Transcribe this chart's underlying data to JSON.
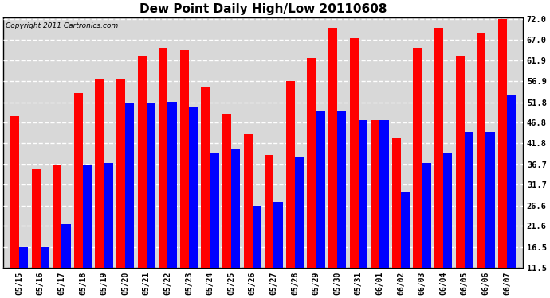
{
  "title": "Dew Point Daily High/Low 20110608",
  "copyright": "Copyright 2011 Cartronics.com",
  "dates": [
    "05/15",
    "05/16",
    "05/17",
    "05/18",
    "05/19",
    "05/20",
    "05/21",
    "05/22",
    "05/23",
    "05/24",
    "05/25",
    "05/26",
    "05/27",
    "05/28",
    "05/29",
    "05/30",
    "05/31",
    "06/01",
    "06/02",
    "06/03",
    "06/04",
    "06/05",
    "06/06",
    "06/07"
  ],
  "highs": [
    48.5,
    35.5,
    36.5,
    54.0,
    57.5,
    57.5,
    63.0,
    65.0,
    64.5,
    55.5,
    49.0,
    44.0,
    39.0,
    57.0,
    62.5,
    70.0,
    67.5,
    47.5,
    43.0,
    65.0,
    70.0,
    63.0,
    68.5,
    72.0
  ],
  "lows": [
    16.5,
    16.5,
    22.0,
    36.5,
    37.0,
    51.5,
    51.5,
    52.0,
    50.5,
    39.5,
    40.5,
    26.5,
    27.5,
    38.5,
    49.5,
    49.5,
    47.5,
    47.5,
    30.0,
    37.0,
    39.5,
    44.5,
    44.5,
    53.5
  ],
  "high_color": "#ff0000",
  "low_color": "#0000ff",
  "bg_color": "#ffffff",
  "plot_bg_color": "#d8d8d8",
  "grid_color": "#ffffff",
  "ymin": 11.5,
  "ymax": 72.0,
  "yticks": [
    11.5,
    16.5,
    21.6,
    26.6,
    31.7,
    36.7,
    41.8,
    46.8,
    51.8,
    56.9,
    61.9,
    67.0,
    72.0
  ]
}
